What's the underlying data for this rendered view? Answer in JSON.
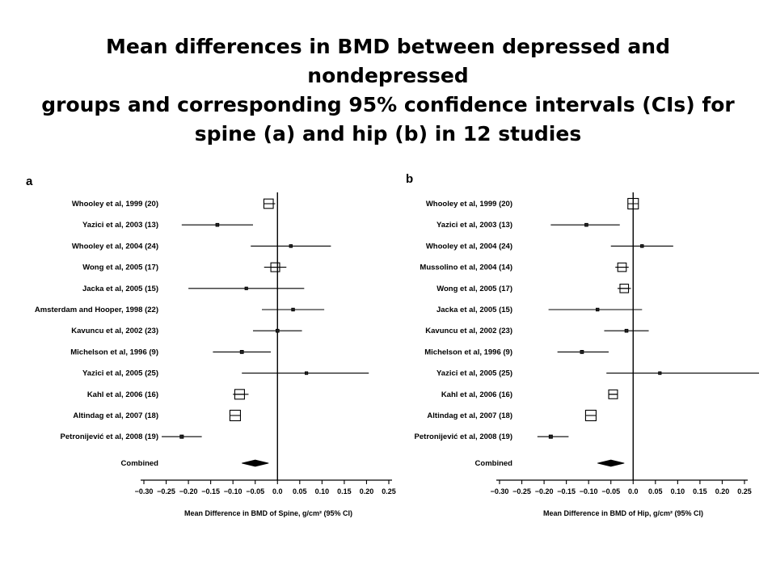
{
  "slide": {
    "title_lines": [
      "Mean differences in BMD between depressed and nondepressed",
      "groups and corresponding 95% confidence intervals (CIs) for",
      "spine (a) and hip (b) in 12 studies"
    ]
  },
  "chart_data": [
    {
      "type": "forest",
      "panel_label": "a",
      "xlabel": "Mean Difference in BMD of Spine, g/cm² (95% CI)",
      "xlim": [
        -0.3,
        0.25
      ],
      "x_ticks": [
        -0.3,
        -0.25,
        -0.2,
        -0.15,
        -0.1,
        -0.05,
        0.0,
        0.05,
        0.1,
        0.15,
        0.2,
        0.25
      ],
      "x_tick_labels": [
        "−0.30",
        "−0.25",
        "−0.20",
        "−0.15",
        "−0.10",
        "−0.05",
        "0.0",
        "0.05",
        "0.10",
        "0.15",
        "0.20",
        "0.25"
      ],
      "studies": [
        {
          "label": "Whooley et al, 1999 (20)",
          "estimate": -0.02,
          "ci": [
            -0.03,
            -0.005
          ],
          "weight": 0.8
        },
        {
          "label": "Yazici et al, 2003 (13)",
          "estimate": -0.135,
          "ci": [
            -0.215,
            -0.055
          ],
          "weight": 0.2
        },
        {
          "label": "Whooley et al, 2004 (24)",
          "estimate": 0.03,
          "ci": [
            -0.06,
            0.12
          ],
          "weight": 0.15
        },
        {
          "label": "Wong et al, 2005 (17)",
          "estimate": -0.005,
          "ci": [
            -0.03,
            0.02
          ],
          "weight": 0.7
        },
        {
          "label": "Jacka et al, 2005 (15)",
          "estimate": -0.07,
          "ci": [
            -0.2,
            0.06
          ],
          "weight": 0.1
        },
        {
          "label": "Amsterdam and Hooper, 1998 (22)",
          "estimate": 0.035,
          "ci": [
            -0.035,
            0.105
          ],
          "weight": 0.15
        },
        {
          "label": "Kavuncu et al, 2002 (23)",
          "estimate": 0.0,
          "ci": [
            -0.055,
            0.055
          ],
          "weight": 0.2
        },
        {
          "label": "Michelson et al, 1996 (9)",
          "estimate": -0.08,
          "ci": [
            -0.145,
            -0.015
          ],
          "weight": 0.25
        },
        {
          "label": "Yazici et al, 2005 (25)",
          "estimate": 0.065,
          "ci": [
            -0.08,
            0.205
          ],
          "weight": 0.1
        },
        {
          "label": "Kahl et al, 2006 (16)",
          "estimate": -0.085,
          "ci": [
            -0.1,
            -0.065
          ],
          "weight": 0.85
        },
        {
          "label": "Altindag et al, 2007 (18)",
          "estimate": -0.095,
          "ci": [
            -0.105,
            -0.085
          ],
          "weight": 1.0
        },
        {
          "label": "Petronijević et al, 2008 (19)",
          "estimate": -0.215,
          "ci": [
            -0.26,
            -0.17
          ],
          "weight": 0.3
        }
      ],
      "combined": {
        "label": "Combined",
        "estimate": -0.05,
        "ci": [
          -0.08,
          -0.02
        ]
      }
    },
    {
      "type": "forest",
      "panel_label": "b",
      "xlabel": "Mean Difference in BMD of Hip, g/cm² (95% CI)",
      "xlim": [
        -0.3,
        0.25
      ],
      "x_ticks": [
        -0.3,
        -0.25,
        -0.2,
        -0.15,
        -0.1,
        -0.05,
        0.0,
        0.05,
        0.1,
        0.15,
        0.2,
        0.25
      ],
      "x_tick_labels": [
        "−0.30",
        "−0.25",
        "−0.20",
        "−0.15",
        "−0.10",
        "−0.05",
        "0.0",
        "0.05",
        "0.10",
        "0.15",
        "0.20",
        "0.25"
      ],
      "studies": [
        {
          "label": "Whooley et al, 1999 (20)",
          "estimate": 0.0,
          "ci": [
            0.0,
            0.0
          ],
          "weight": 1.0
        },
        {
          "label": "Yazici et al, 2003 (13)",
          "estimate": -0.105,
          "ci": [
            -0.185,
            -0.03
          ],
          "weight": 0.2
        },
        {
          "label": "Whooley et al, 2004 (24)",
          "estimate": 0.02,
          "ci": [
            -0.05,
            0.09
          ],
          "weight": 0.15
        },
        {
          "label": "Mussolino et al, 2004 (14)",
          "estimate": -0.025,
          "ci": [
            -0.04,
            -0.01
          ],
          "weight": 0.65
        },
        {
          "label": "Wong et al, 2005 (17)",
          "estimate": -0.02,
          "ci": [
            -0.035,
            -0.005
          ],
          "weight": 0.65
        },
        {
          "label": "Jacka et al, 2005 (15)",
          "estimate": -0.08,
          "ci": [
            -0.19,
            0.02
          ],
          "weight": 0.15
        },
        {
          "label": "Kavuncu et al, 2002 (23)",
          "estimate": -0.015,
          "ci": [
            -0.065,
            0.035
          ],
          "weight": 0.2
        },
        {
          "label": "Michelson et al, 1996 (9)",
          "estimate": -0.115,
          "ci": [
            -0.17,
            -0.055
          ],
          "weight": 0.25
        },
        {
          "label": "Yazici et al, 2005 (25)",
          "estimate": 0.06,
          "ci": [
            -0.06,
            0.285
          ],
          "weight": 0.1
        },
        {
          "label": "Kahl et al, 2006 (16)",
          "estimate": -0.045,
          "ci": [
            -0.055,
            -0.035
          ],
          "weight": 0.7
        },
        {
          "label": "Altindag et al, 2007 (18)",
          "estimate": -0.095,
          "ci": [
            -0.105,
            -0.085
          ],
          "weight": 1.0
        },
        {
          "label": "Petronijević et al, 2008 (19)",
          "estimate": -0.185,
          "ci": [
            -0.215,
            -0.145
          ],
          "weight": 0.3
        }
      ],
      "combined": {
        "label": "Combined",
        "estimate": -0.05,
        "ci": [
          -0.08,
          -0.02
        ]
      }
    }
  ]
}
